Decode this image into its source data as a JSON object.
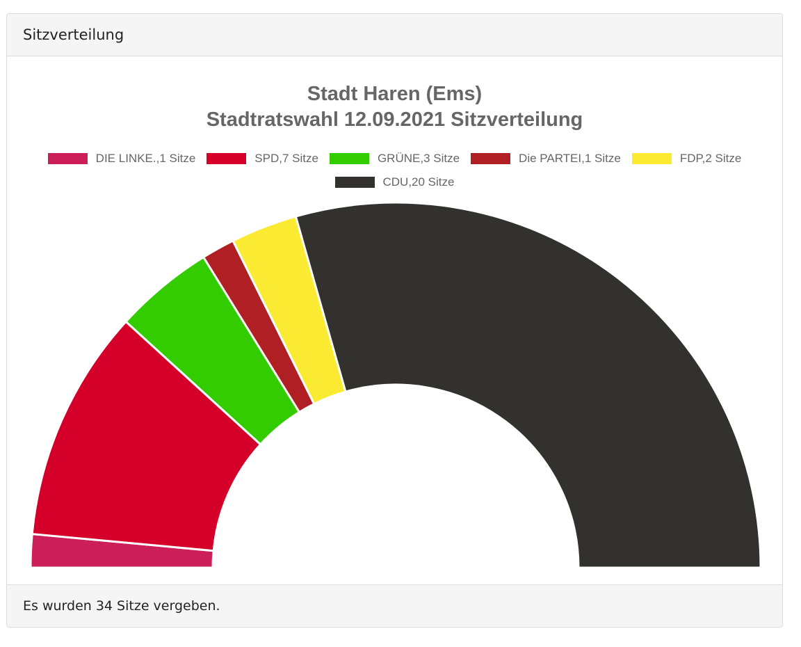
{
  "panel": {
    "header": "Sitzverteilung",
    "footer": "Es wurden 34 Sitze vergeben."
  },
  "chart_data": {
    "type": "pie",
    "subtype": "half-doughnut (parliament)",
    "title": [
      "Stadt Haren (Ems)",
      "Stadtratswahl 12.09.2021 Sitzverteilung"
    ],
    "categories": [
      "DIE LINKE.",
      "SPD",
      "GRÜNE",
      "Die PARTEI",
      "FDP",
      "CDU"
    ],
    "values": [
      1,
      7,
      3,
      1,
      2,
      20
    ],
    "colors": [
      "#cc1f5a",
      "#d5002a",
      "#33cc00",
      "#b01f23",
      "#faea31",
      "#32312e"
    ],
    "legend_labels": [
      "DIE LINKE.,1 Sitze",
      "SPD,7 Sitze",
      "GRÜNE,3 Sitze",
      "Die PARTEI,1 Sitze",
      "FDP,2 Sitze",
      "CDU,20 Sitze"
    ],
    "legend_position": "top",
    "total_seats": 34
  }
}
